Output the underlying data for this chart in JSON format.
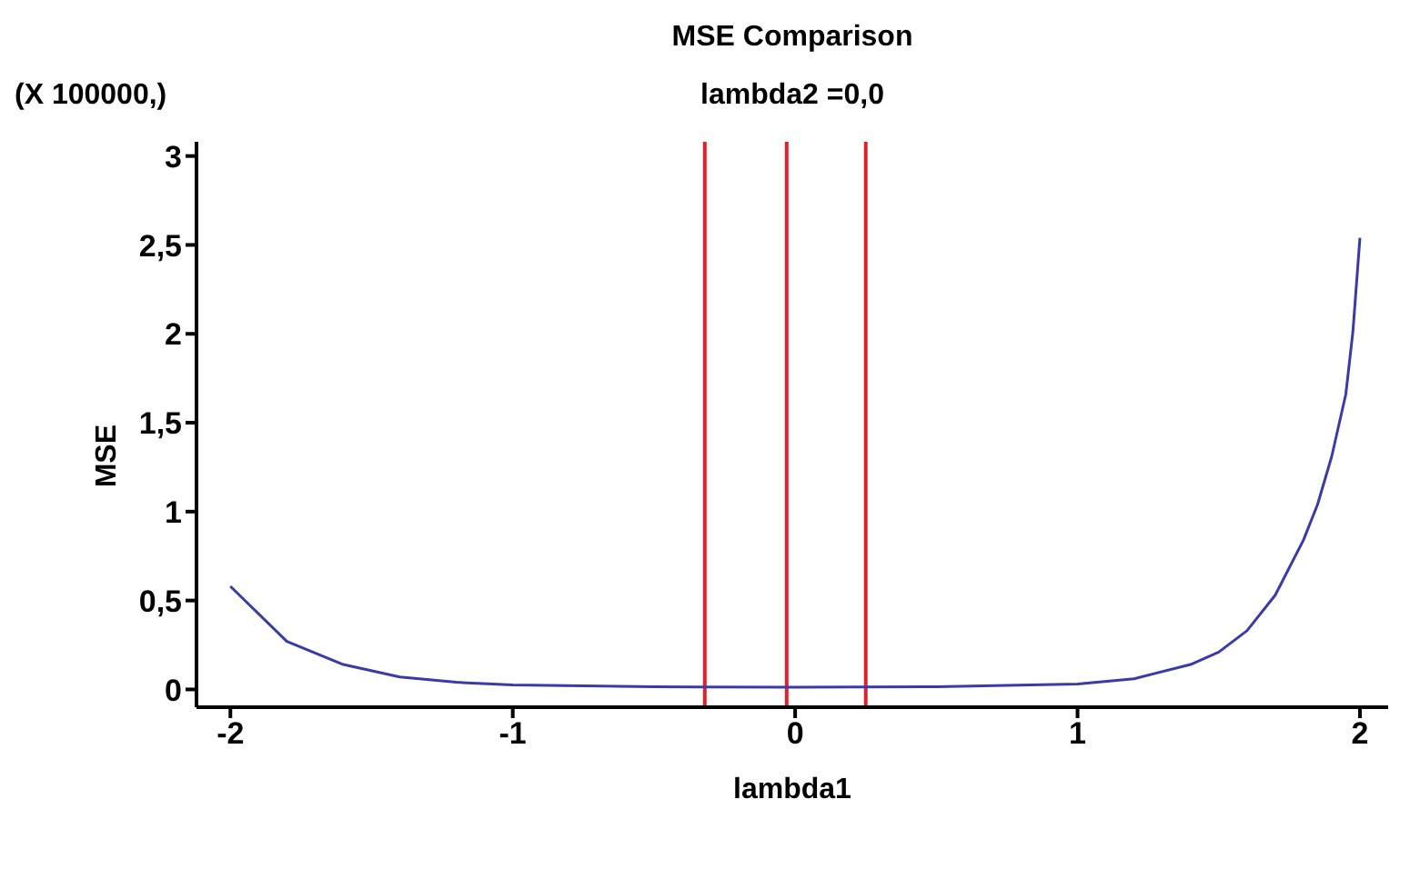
{
  "chart_data": {
    "type": "line",
    "title": "MSE Comparison",
    "subtitle": "lambda2 =0,0",
    "xlabel": "lambda1",
    "ylabel": "MSE",
    "annotations": [
      "(X 100000,)"
    ],
    "x": [
      -2,
      -1.8,
      -1.6,
      -1.4,
      -1.2,
      -1,
      -0.5,
      0,
      0.5,
      1,
      1.2,
      1.4,
      1.5,
      1.6,
      1.7,
      1.8,
      1.85,
      1.9,
      1.95,
      1.975,
      2
    ],
    "series": [
      {
        "color": "#3a3aa8",
        "values": [
          0.58,
          0.27,
          0.14,
          0.07,
          0.04,
          0.025,
          0.015,
          0.012,
          0.015,
          0.03,
          0.06,
          0.14,
          0.21,
          0.33,
          0.53,
          0.84,
          1.04,
          1.31,
          1.66,
          2.01,
          2.54
        ]
      }
    ],
    "xlim": [
      -2.12,
      2.1
    ],
    "xticks": [
      -2,
      -1,
      0,
      1,
      2
    ],
    "ylim": [
      -0.1,
      3.08
    ],
    "yticks": [
      0,
      {
        "value": 0.5,
        "label": "0,5"
      },
      1,
      {
        "value": 1.5,
        "label": "1,5"
      },
      2,
      {
        "value": 2.5,
        "label": "2,5"
      },
      3
    ],
    "ref_lines": [
      {
        "axis": "x",
        "value": -0.32,
        "color": "#e0202a"
      },
      {
        "axis": "x",
        "value": -0.03,
        "color": "#e0202a"
      },
      {
        "axis": "x",
        "value": 0.25,
        "color": "#e0202a"
      }
    ],
    "grid": false,
    "legend": false,
    "marker": "none",
    "line_style": "solid"
  }
}
